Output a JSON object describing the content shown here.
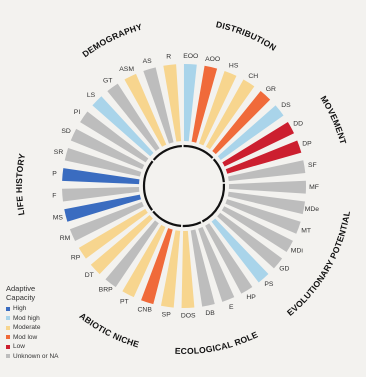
{
  "chart_data": {
    "type": "radial-bar",
    "title": "",
    "categories": [
      {
        "name": "DISTRIBUTION",
        "labels": [
          "EOO",
          "AOO",
          "HS",
          "CH",
          "GR"
        ]
      },
      {
        "name": "MOVEMENT",
        "labels": [
          "DS",
          "DD",
          "DP",
          "SF"
        ]
      },
      {
        "name": "EVOLUTIONARY POTENTIAL",
        "labels": [
          "MF",
          "MDe",
          "MT",
          "MDi",
          "GD",
          "PS",
          "HP"
        ]
      },
      {
        "name": "ECOLOGICAL ROLE",
        "labels": [
          "E",
          "DB",
          "DOS"
        ]
      },
      {
        "name": "ABIOTIC NICHE",
        "labels": [
          "SP",
          "CNB",
          "PT",
          "BRP",
          "DT"
        ]
      },
      {
        "name": "LIFE HISTORY",
        "labels": [
          "RP",
          "RM",
          "MS",
          "F",
          "P",
          "SR",
          "SD",
          "PI"
        ]
      },
      {
        "name": "DEMOGRAPHY",
        "labels": [
          "LS",
          "GT",
          "ASM",
          "AS",
          "R"
        ]
      }
    ],
    "bars": [
      {
        "label": "EOO",
        "level": "Mod high"
      },
      {
        "label": "AOO",
        "level": "Mod low"
      },
      {
        "label": "HS",
        "level": "Moderate"
      },
      {
        "label": "CH",
        "level": "Moderate"
      },
      {
        "label": "GR",
        "level": "Mod low"
      },
      {
        "label": "DS",
        "level": "Mod high"
      },
      {
        "label": "DD",
        "level": "Low"
      },
      {
        "label": "DP",
        "level": "Low"
      },
      {
        "label": "SF",
        "level": "Unknown or NA"
      },
      {
        "label": "MF",
        "level": "Unknown or NA"
      },
      {
        "label": "MDe",
        "level": "Unknown or NA"
      },
      {
        "label": "MT",
        "level": "Unknown or NA"
      },
      {
        "label": "MDi",
        "level": "Unknown or NA"
      },
      {
        "label": "GD",
        "level": "Unknown or NA"
      },
      {
        "label": "PS",
        "level": "Mod high"
      },
      {
        "label": "HP",
        "level": "Unknown or NA"
      },
      {
        "label": "E",
        "level": "Unknown or NA"
      },
      {
        "label": "DB",
        "level": "Unknown or NA"
      },
      {
        "label": "DOS",
        "level": "Moderate"
      },
      {
        "label": "SP",
        "level": "Moderate"
      },
      {
        "label": "CNB",
        "level": "Mod low"
      },
      {
        "label": "PT",
        "level": "Moderate"
      },
      {
        "label": "BRP",
        "level": "Unknown or NA"
      },
      {
        "label": "DT",
        "level": "Moderate"
      },
      {
        "label": "RP",
        "level": "Moderate"
      },
      {
        "label": "RM",
        "level": "Unknown or NA"
      },
      {
        "label": "MS",
        "level": "High"
      },
      {
        "label": "F",
        "level": "Unknown or NA"
      },
      {
        "label": "P",
        "level": "High"
      },
      {
        "label": "SR",
        "level": "Unknown or NA"
      },
      {
        "label": "SD",
        "level": "Unknown or NA"
      },
      {
        "label": "PI",
        "level": "Unknown or NA"
      },
      {
        "label": "LS",
        "level": "Mod high"
      },
      {
        "label": "GT",
        "level": "Unknown or NA"
      },
      {
        "label": "ASM",
        "level": "Moderate"
      },
      {
        "label": "AS",
        "level": "Unknown or NA"
      },
      {
        "label": "R",
        "level": "Moderate"
      }
    ]
  },
  "legend": {
    "title_line1": "Adaptive",
    "title_line2": "Capacity",
    "items": [
      {
        "label": "High",
        "color": "#3a6cc0"
      },
      {
        "label": "Mod high",
        "color": "#a9d4ea"
      },
      {
        "label": "Moderate",
        "color": "#f7d58e"
      },
      {
        "label": "Mod low",
        "color": "#f06a3a"
      },
      {
        "label": "Low",
        "color": "#cc1f2f"
      },
      {
        "label": "Unknown or NA",
        "color": "#bdbdbd"
      }
    ]
  }
}
